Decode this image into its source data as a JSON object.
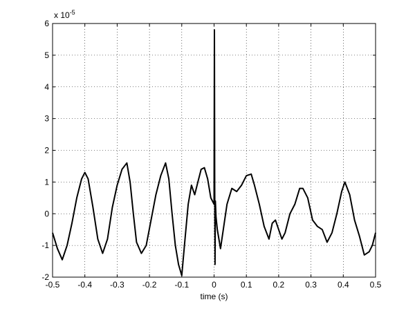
{
  "chart_data": {
    "type": "line",
    "title": "",
    "xlabel": "time (s)",
    "ylabel": "",
    "xlim": [
      -0.5,
      0.5
    ],
    "ylim": [
      -2,
      6
    ],
    "y_multiplier_label": "x 10",
    "y_multiplier_exponent": "-5",
    "grid": true,
    "x_ticks": [
      -0.5,
      -0.4,
      -0.3,
      -0.2,
      -0.1,
      0,
      0.1,
      0.2,
      0.3,
      0.4,
      0.5
    ],
    "x_tick_labels": [
      "-0.5",
      "-0.4",
      "-0.3",
      "-0.2",
      "-0.1",
      "0",
      "0.1",
      "0.2",
      "0.3",
      "0.4",
      "0.5"
    ],
    "y_ticks": [
      -2,
      -1,
      0,
      1,
      2,
      3,
      4,
      5,
      6
    ],
    "y_tick_labels": [
      "-2",
      "-1",
      "0",
      "1",
      "2",
      "3",
      "4",
      "5",
      "6"
    ],
    "series": [
      {
        "color": "#000000",
        "x": [
          -0.5,
          -0.485,
          -0.47,
          -0.455,
          -0.44,
          -0.425,
          -0.41,
          -0.4,
          -0.39,
          -0.375,
          -0.36,
          -0.345,
          -0.33,
          -0.315,
          -0.3,
          -0.285,
          -0.27,
          -0.26,
          -0.25,
          -0.24,
          -0.225,
          -0.21,
          -0.195,
          -0.18,
          -0.165,
          -0.15,
          -0.14,
          -0.13,
          -0.12,
          -0.11,
          -0.1,
          -0.09,
          -0.08,
          -0.07,
          -0.06,
          -0.05,
          -0.04,
          -0.03,
          -0.02,
          -0.01,
          0,
          0.001,
          0.002,
          0.003,
          0.004,
          0.006,
          0.01,
          0.02,
          0.03,
          0.04,
          0.055,
          0.07,
          0.085,
          0.1,
          0.115,
          0.125,
          0.14,
          0.155,
          0.17,
          0.18,
          0.19,
          0.2,
          0.21,
          0.22,
          0.235,
          0.25,
          0.265,
          0.275,
          0.29,
          0.305,
          0.32,
          0.335,
          0.35,
          0.365,
          0.38,
          0.395,
          0.405,
          0.42,
          0.435,
          0.45,
          0.465,
          0.48,
          0.49,
          0.5
        ],
        "y": [
          -0.6,
          -1.1,
          -1.45,
          -1.0,
          -0.3,
          0.5,
          1.1,
          1.3,
          1.1,
          0.2,
          -0.8,
          -1.25,
          -0.8,
          0.2,
          0.9,
          1.4,
          1.6,
          1.0,
          0.0,
          -0.9,
          -1.25,
          -1.0,
          -0.2,
          0.6,
          1.2,
          1.6,
          1.1,
          0.0,
          -1.0,
          -1.6,
          -1.95,
          -0.8,
          0.3,
          0.9,
          0.6,
          1.0,
          1.4,
          1.45,
          1.1,
          0.5,
          0.3,
          5.8,
          1.0,
          -1.6,
          0.4,
          -0.1,
          -0.5,
          -1.1,
          -0.4,
          0.3,
          0.8,
          0.7,
          0.9,
          1.2,
          1.25,
          0.9,
          0.3,
          -0.4,
          -0.8,
          -0.3,
          -0.2,
          -0.5,
          -0.8,
          -0.6,
          0.0,
          0.3,
          0.8,
          0.8,
          0.5,
          -0.2,
          -0.4,
          -0.5,
          -0.9,
          -0.6,
          0.0,
          0.7,
          1.0,
          0.6,
          -0.2,
          -0.7,
          -1.3,
          -1.2,
          -1.0,
          -0.6
        ]
      }
    ]
  }
}
